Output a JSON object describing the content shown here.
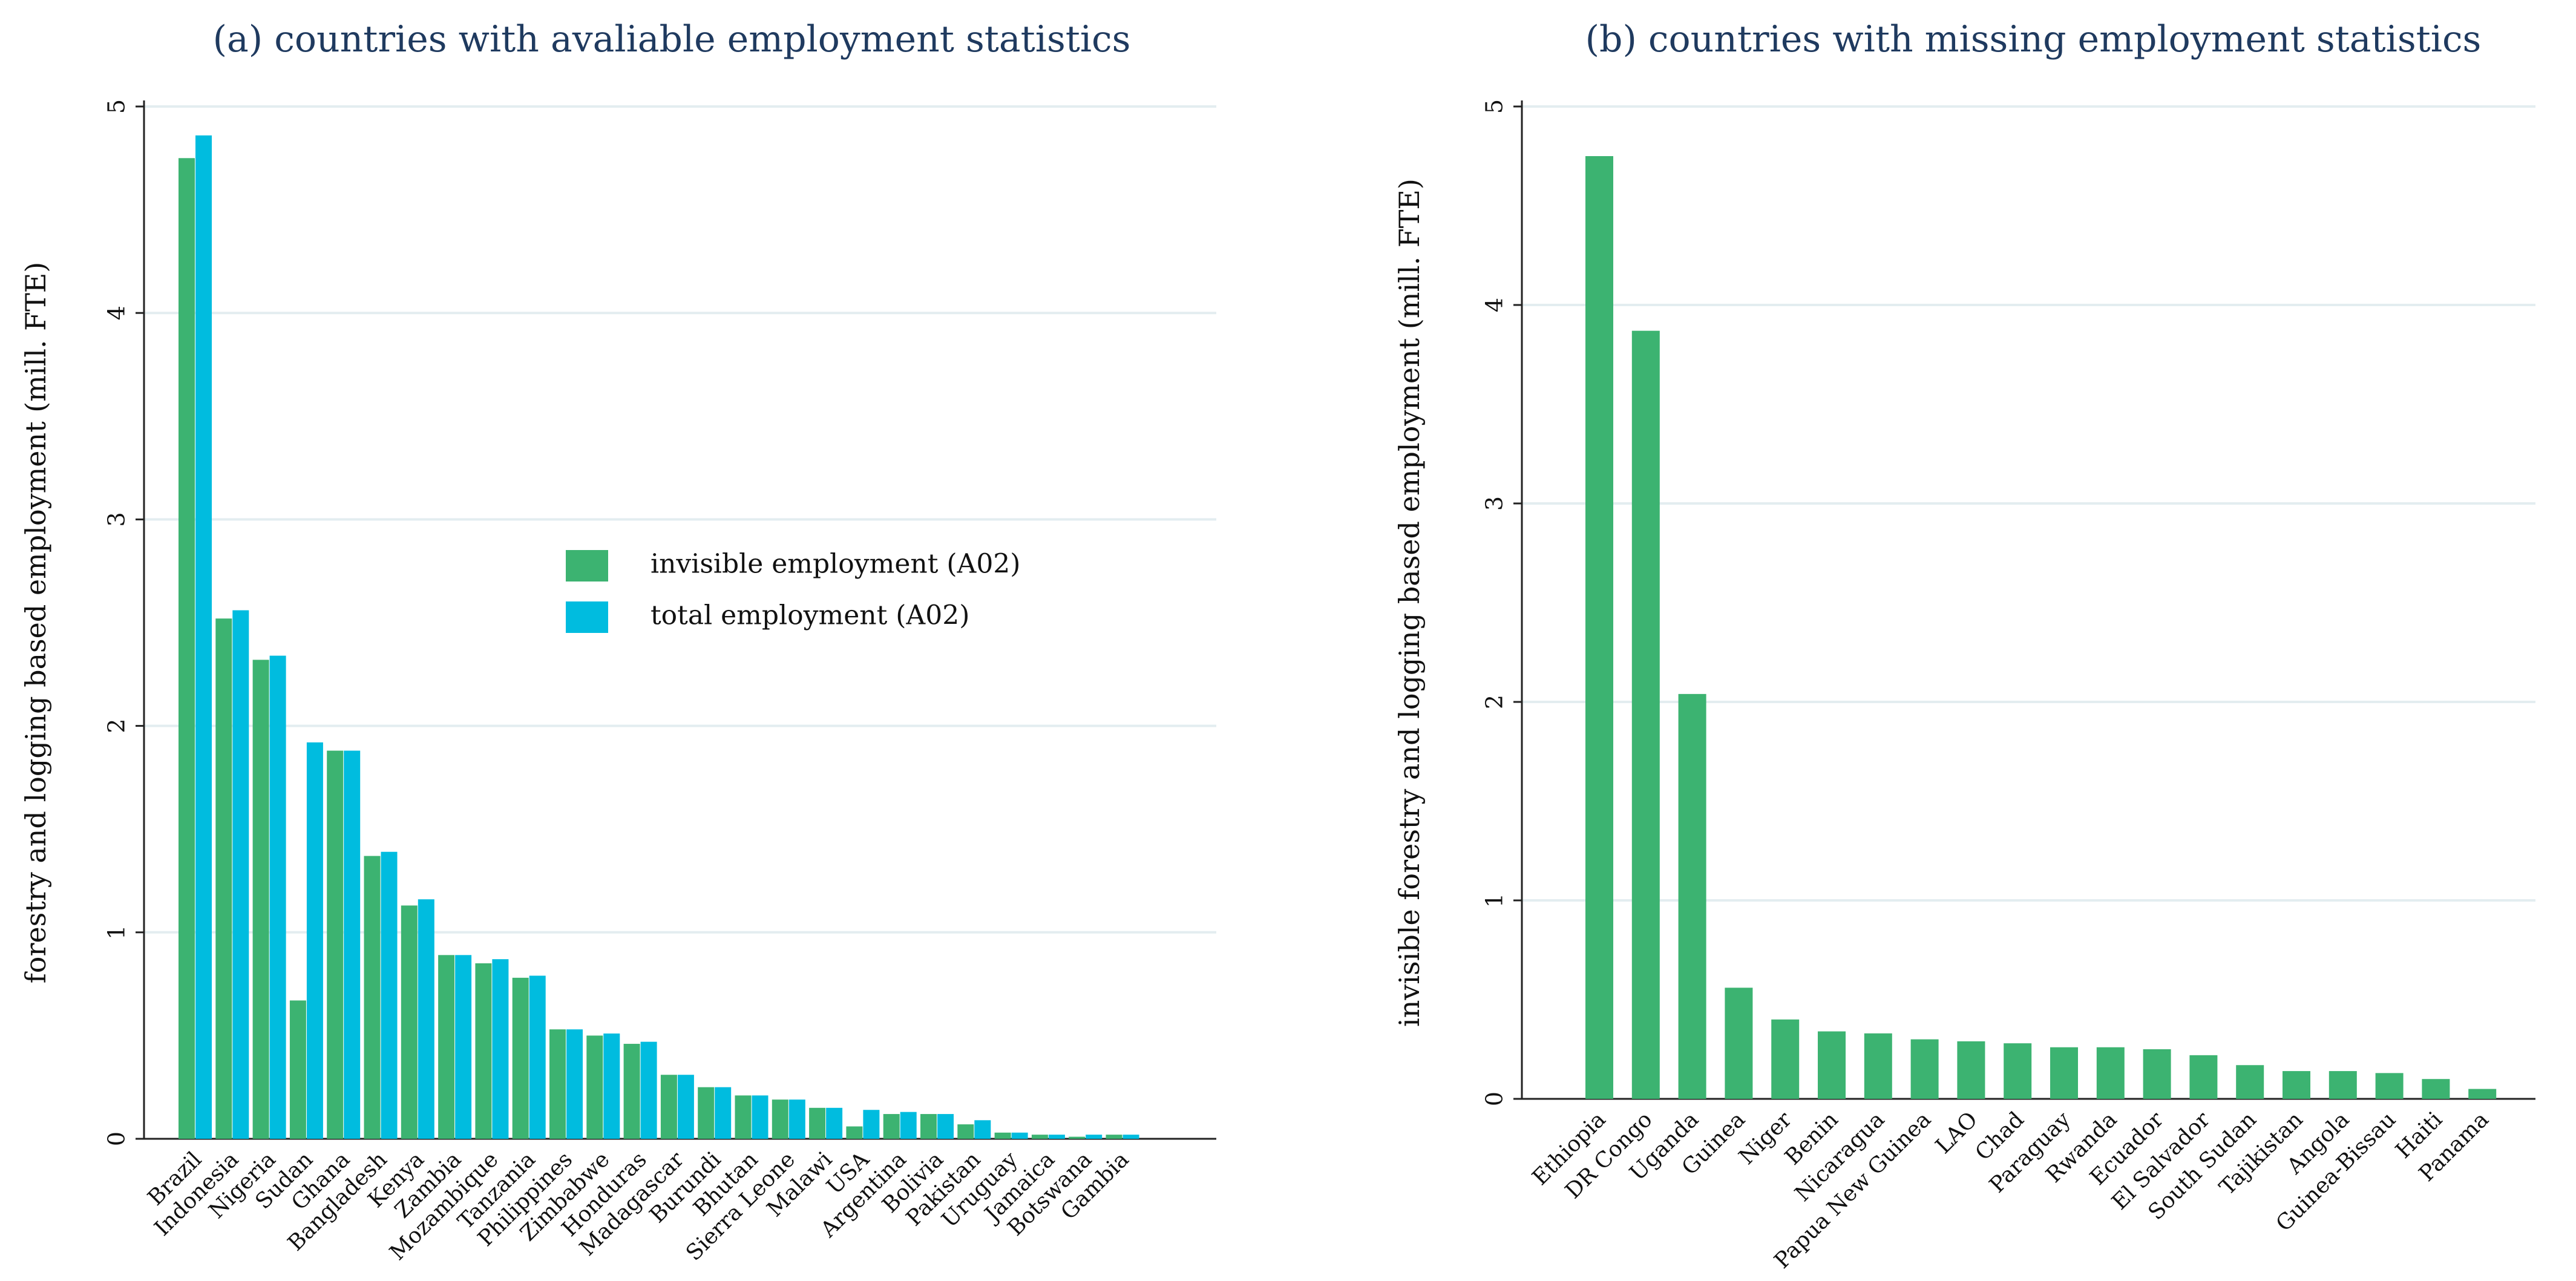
{
  "chart_data": [
    {
      "type": "bar",
      "title": "(a) countries with avaliable employment statistics",
      "xlabel": "",
      "ylabel": "forestry and logging based employment (mill. FTE)",
      "ylim": [
        0,
        5
      ],
      "yticks": [
        0,
        1,
        2,
        3,
        4,
        5
      ],
      "grid": true,
      "legend_position": "center-right",
      "categories": [
        "Brazil",
        "Indonesia",
        "Nigeria",
        "Sudan",
        "Ghana",
        "Bangladesh",
        "Kenya",
        "Zambia",
        "Mozambique",
        "Tanzania",
        "Philippines",
        "Zimbabwe",
        "Honduras",
        "Madagascar",
        "Burundi",
        "Bhutan",
        "Sierra Leone",
        "Malawi",
        "USA",
        "Argentina",
        "Bolivia",
        "Pakistan",
        "Uruguay",
        "Jamaica",
        "Botswana",
        "Gambia"
      ],
      "series": [
        {
          "name": "invisible employment (A02)",
          "color": "#3cb371",
          "values": [
            4.75,
            2.52,
            2.32,
            0.67,
            1.88,
            1.37,
            1.13,
            0.89,
            0.85,
            0.78,
            0.53,
            0.5,
            0.46,
            0.31,
            0.25,
            0.21,
            0.19,
            0.15,
            0.06,
            0.12,
            0.12,
            0.07,
            0.03,
            0.02,
            0.01,
            0.02
          ]
        },
        {
          "name": "total employment (A02)",
          "color": "#00bcdf",
          "values": [
            4.86,
            2.56,
            2.34,
            1.92,
            1.88,
            1.39,
            1.16,
            0.89,
            0.87,
            0.79,
            0.53,
            0.51,
            0.47,
            0.31,
            0.25,
            0.21,
            0.19,
            0.15,
            0.14,
            0.13,
            0.12,
            0.09,
            0.03,
            0.02,
            0.02,
            0.02
          ]
        }
      ]
    },
    {
      "type": "bar",
      "title": "(b) countries with missing employment statistics",
      "xlabel": "",
      "ylabel": "invisible forestry and logging based employment (mill. FTE)",
      "ylim": [
        0,
        5
      ],
      "yticks": [
        0,
        1,
        2,
        3,
        4,
        5
      ],
      "grid": true,
      "categories": [
        "Ethiopia",
        "DR Congo",
        "Uganda",
        "Guinea",
        "Niger",
        "Benin",
        "Nicaragua",
        "Papua New Guinea",
        "LAO",
        "Chad",
        "Paraguay",
        "Rwanda",
        "Ecuador",
        "El Salvador",
        "South Sudan",
        "Tajikistan",
        "Angola",
        "Guinea-Bissau",
        "Haiti",
        "Panama"
      ],
      "series": [
        {
          "name": "invisible employment (A02)",
          "color": "#3cb371",
          "values": [
            4.75,
            3.87,
            2.04,
            0.56,
            0.4,
            0.34,
            0.33,
            0.3,
            0.29,
            0.28,
            0.26,
            0.26,
            0.25,
            0.22,
            0.17,
            0.14,
            0.14,
            0.13,
            0.1,
            0.05
          ]
        }
      ]
    }
  ]
}
